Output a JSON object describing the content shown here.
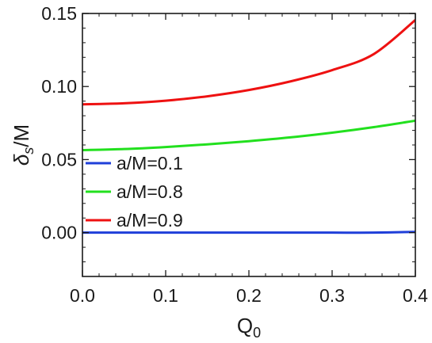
{
  "chart_data": {
    "type": "line",
    "xlabel": "Q",
    "xlabel_sub": "0",
    "ylabel_symbol": "δ",
    "ylabel_sub": "s",
    "ylabel_tail": "/M",
    "xlim": [
      0.0,
      0.4
    ],
    "ylim": [
      -0.03,
      0.15
    ],
    "xticks": [
      0.0,
      0.1,
      0.2,
      0.3,
      0.4
    ],
    "xtick_labels": [
      "0.0",
      "0.1",
      "0.2",
      "0.3",
      "0.4"
    ],
    "yticks": [
      0.0,
      0.05,
      0.1,
      0.15
    ],
    "ytick_labels": [
      "0.00",
      "0.05",
      "0.10",
      "0.15"
    ],
    "grid": false,
    "legend_position": "middle-left",
    "series": [
      {
        "name": "a/M=0.1",
        "color": "#1f3fd9",
        "x": [
          0.0,
          0.05,
          0.1,
          0.15,
          0.2,
          0.25,
          0.3,
          0.35,
          0.4
        ],
        "y": [
          0.0,
          0.0,
          0.0,
          0.0,
          0.0,
          0.0,
          0.0,
          0.0,
          0.0005
        ]
      },
      {
        "name": "a/M=0.8",
        "color": "#22e01e",
        "x": [
          0.0,
          0.05,
          0.1,
          0.15,
          0.2,
          0.25,
          0.3,
          0.35,
          0.4
        ],
        "y": [
          0.0565,
          0.0572,
          0.0586,
          0.0604,
          0.0626,
          0.0652,
          0.0684,
          0.0722,
          0.0766
        ]
      },
      {
        "name": "a/M=0.9",
        "color": "#ee1111",
        "x": [
          0.0,
          0.05,
          0.1,
          0.15,
          0.2,
          0.25,
          0.3,
          0.35,
          0.4
        ],
        "y": [
          0.0878,
          0.0885,
          0.0903,
          0.0933,
          0.0976,
          0.1035,
          0.1112,
          0.1222,
          0.1455
        ]
      }
    ]
  }
}
